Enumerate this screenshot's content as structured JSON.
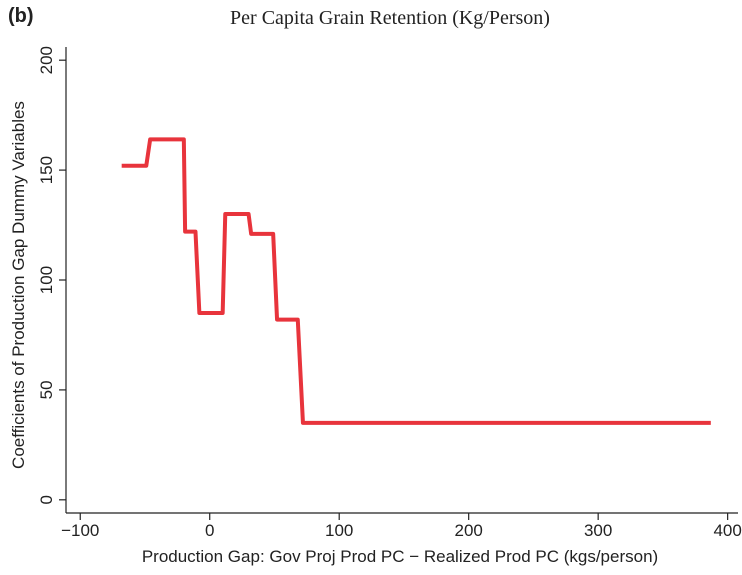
{
  "chart_data": {
    "type": "line",
    "panel_label": "(b)",
    "title": "Per Capita Grain Retention (Kg/Person)",
    "x_label": "Production Gap: Gov Proj Prod PC − Realized Prod PC (kgs/person)",
    "y_label": "Coefficients of Production Gap Dummy Variables",
    "x": [
      -68,
      -49,
      -46,
      -20,
      -19,
      -11,
      -8,
      10,
      12,
      30,
      32,
      49,
      52,
      68,
      72,
      387
    ],
    "series": [
      {
        "color": "#e8343c",
        "values": [
          152,
          152,
          164,
          164,
          122,
          122,
          85,
          85,
          130,
          130,
          121,
          121,
          82,
          82,
          35,
          35
        ]
      }
    ],
    "xlim": [
      -111,
      408
    ],
    "xticks": [
      {
        "value": -100,
        "label": "−100"
      },
      0,
      100,
      200,
      300,
      400
    ],
    "ylim": [
      -6,
      206
    ],
    "yticks": [
      0,
      50,
      100,
      150,
      200
    ],
    "grid": false
  }
}
